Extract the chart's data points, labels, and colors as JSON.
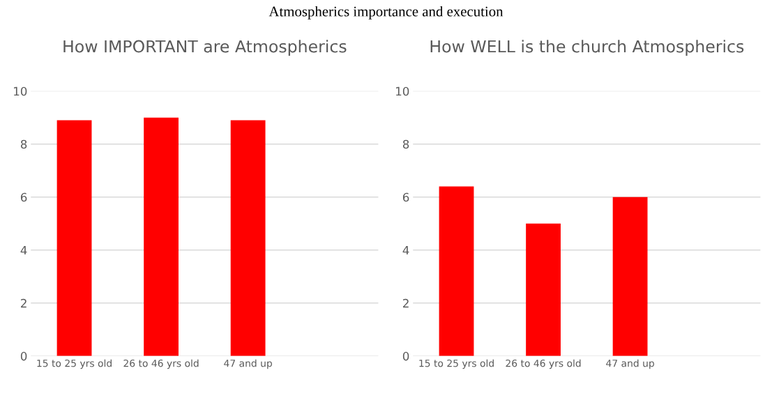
{
  "chart_data": [
    {
      "type": "bar",
      "title": "How IMPORTANT are Atmospherics",
      "annotations": [
        "Atmospherics importance and execution"
      ],
      "categories": [
        "15 to 25 yrs old",
        "26 to 46 yrs old",
        "47 and up",
        null
      ],
      "values": [
        8.9,
        9.0,
        8.9,
        null
      ],
      "color": "#ff0000",
      "ylim": [
        0,
        10
      ],
      "yticks": [
        0,
        2,
        4,
        6,
        8,
        10
      ],
      "grid": "y"
    },
    {
      "type": "bar",
      "title": "How WELL is the church Atmospherics",
      "categories": [
        "15 to 25 yrs old",
        "26 to 46 yrs old",
        "47 and up",
        null
      ],
      "values": [
        6.4,
        5.0,
        6.0,
        null
      ],
      "color": "#ff0000",
      "ylim": [
        0,
        10
      ],
      "yticks": [
        0,
        2,
        4,
        6,
        8,
        10
      ],
      "grid": "y"
    }
  ]
}
